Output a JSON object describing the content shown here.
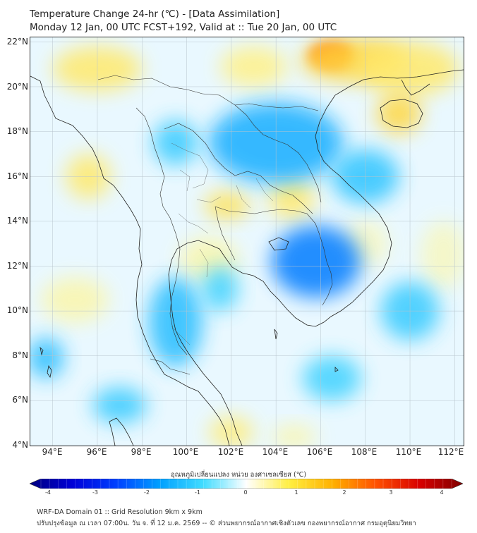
{
  "header": {
    "title_line1": "Temperature Change 24-hr (℃) - [Data Assimilation]",
    "title_line2": "Monday 12 Jan, 00 UTC FCST+192, Valid at :: Tue 20 Jan, 00 UTC"
  },
  "map": {
    "lat_labels": [
      "22°N",
      "20°N",
      "18°N",
      "16°N",
      "14°N",
      "12°N",
      "10°N",
      "8°N",
      "6°N",
      "4°N"
    ],
    "lon_labels": [
      "94°E",
      "96°E",
      "98°E",
      "100°E",
      "102°E",
      "104°E",
      "106°E",
      "108°E",
      "110°E",
      "112°E"
    ],
    "lat_range": [
      4,
      22.2
    ],
    "lon_range": [
      93,
      112.4
    ],
    "regions": [
      {
        "kind": "warm",
        "lon": 106.5,
        "lat": 21.4,
        "rx": 1.0,
        "ry": 0.6,
        "value": 2.8
      },
      {
        "kind": "warm",
        "lon": 107.5,
        "lat": 21.2,
        "rx": 2.4,
        "ry": 1.0,
        "value": 1.2
      },
      {
        "kind": "warm",
        "lon": 96.0,
        "lat": 20.8,
        "rx": 2.0,
        "ry": 1.0,
        "value": 0.8
      },
      {
        "kind": "warm",
        "lon": 103.0,
        "lat": 20.9,
        "rx": 1.5,
        "ry": 0.9,
        "value": 0.6
      },
      {
        "kind": "warm",
        "lon": 110.0,
        "lat": 20.8,
        "rx": 2.2,
        "ry": 1.2,
        "value": 0.8
      },
      {
        "kind": "warm",
        "lon": 109.5,
        "lat": 18.8,
        "rx": 1.0,
        "ry": 0.9,
        "value": 1.2
      },
      {
        "kind": "warm",
        "lon": 95.6,
        "lat": 16.0,
        "rx": 1.0,
        "ry": 1.0,
        "value": 0.8
      },
      {
        "kind": "warm",
        "lon": 101.8,
        "lat": 14.7,
        "rx": 1.0,
        "ry": 0.6,
        "value": 1.0
      },
      {
        "kind": "warm",
        "lon": 104.7,
        "lat": 15.0,
        "rx": 1.0,
        "ry": 0.9,
        "value": 0.8
      },
      {
        "kind": "warm",
        "lon": 101.0,
        "lat": 12.3,
        "rx": 1.3,
        "ry": 1.0,
        "value": 0.4
      },
      {
        "kind": "warm",
        "lon": 95.0,
        "lat": 10.5,
        "rx": 1.5,
        "ry": 1.0,
        "value": 0.4
      },
      {
        "kind": "warm",
        "lon": 102.0,
        "lat": 4.6,
        "rx": 1.0,
        "ry": 0.7,
        "value": 0.7
      },
      {
        "kind": "warm",
        "lon": 104.8,
        "lat": 4.4,
        "rx": 1.0,
        "ry": 0.5,
        "value": 0.4
      },
      {
        "kind": "warm",
        "lon": 108.0,
        "lat": 13.0,
        "rx": 1.0,
        "ry": 1.0,
        "value": 0.3
      },
      {
        "kind": "warm",
        "lon": 111.5,
        "lat": 12.5,
        "rx": 1.0,
        "ry": 1.5,
        "value": 0.3
      },
      {
        "kind": "cool",
        "lon": 104.0,
        "lat": 17.5,
        "rx": 3.0,
        "ry": 1.8,
        "value": -1.0
      },
      {
        "kind": "cool",
        "lon": 105.8,
        "lat": 12.2,
        "rx": 2.0,
        "ry": 1.6,
        "value": -1.5
      },
      {
        "kind": "cool",
        "lon": 99.5,
        "lat": 9.5,
        "rx": 1.2,
        "ry": 2.0,
        "value": -0.8
      },
      {
        "kind": "cool",
        "lon": 108.0,
        "lat": 16.0,
        "rx": 1.5,
        "ry": 1.2,
        "value": -0.7
      },
      {
        "kind": "cool",
        "lon": 110.0,
        "lat": 10.0,
        "rx": 1.3,
        "ry": 1.3,
        "value": -0.6
      },
      {
        "kind": "cool",
        "lon": 93.7,
        "lat": 7.9,
        "rx": 0.8,
        "ry": 0.9,
        "value": -0.8
      },
      {
        "kind": "cool",
        "lon": 97.0,
        "lat": 5.8,
        "rx": 1.2,
        "ry": 0.8,
        "value": -0.6
      },
      {
        "kind": "cool",
        "lon": 99.5,
        "lat": 17.5,
        "rx": 1.0,
        "ry": 1.0,
        "value": -0.6
      },
      {
        "kind": "cool",
        "lon": 101.5,
        "lat": 11.0,
        "rx": 0.8,
        "ry": 1.0,
        "value": -0.5
      },
      {
        "kind": "cool",
        "lon": 106.5,
        "lat": 7.0,
        "rx": 1.3,
        "ry": 1.0,
        "value": -0.5
      }
    ]
  },
  "colorbar": {
    "title": "อุณหภูมิเปลี่ยนแปลง หน่วย องศาเซลเซียส (℃)",
    "ticks": [
      "-4",
      "-3",
      "-2",
      "-1",
      "0",
      "1",
      "2",
      "3",
      "4"
    ],
    "colors": [
      "#00007f",
      "#0000d8",
      "#0040ff",
      "#00a0ff",
      "#40dcff",
      "#ffffff",
      "#ffee40",
      "#ffb000",
      "#ff5000",
      "#d80000",
      "#7f0000"
    ]
  },
  "footer": {
    "line1": "WRF-DA Domain 01 :: Grid Resolution 9km x 9km",
    "line2": "ปรับปรุงข้อมูล ณ เวลา 07:00น. วัน จ. ที่ 12 ม.ค. 2569 -- © ส่วนพยากรณ์อากาศเชิงตัวเลข กองพยากรณ์อากาศ กรมอุตุนิยมวิทยา"
  }
}
